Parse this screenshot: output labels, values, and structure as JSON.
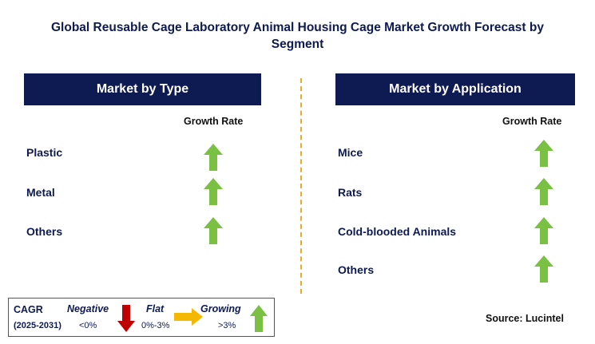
{
  "title": "Global Reusable Cage Laboratory Animal Housing Cage Market Growth Forecast by Segment",
  "left_panel": {
    "header": "Market by Type",
    "growth_label": "Growth Rate",
    "items": [
      {
        "label": "Plastic",
        "trend": "growing"
      },
      {
        "label": "Metal",
        "trend": "growing"
      },
      {
        "label": "Others",
        "trend": "growing"
      }
    ]
  },
  "right_panel": {
    "header": "Market by Application",
    "growth_label": "Growth Rate",
    "items": [
      {
        "label": "Mice",
        "trend": "growing"
      },
      {
        "label": "Rats",
        "trend": "growing"
      },
      {
        "label": "Cold-blooded Animals",
        "trend": "growing"
      },
      {
        "label": "Others",
        "trend": "growing"
      }
    ]
  },
  "legend": {
    "cagr_label": "CAGR",
    "period": "(2025-2031)",
    "negative": {
      "label": "Negative",
      "range": "<0%",
      "color": "#c00000"
    },
    "flat": {
      "label": "Flat",
      "range": "0%-3%",
      "color": "#f5b800"
    },
    "growing": {
      "label": "Growing",
      "range": ">3%",
      "color": "#7ac143"
    }
  },
  "source": "Source: Lucintel",
  "colors": {
    "navy": "#0e1a52",
    "arrow_green": "#7ac143",
    "divider": "#f5a623"
  }
}
